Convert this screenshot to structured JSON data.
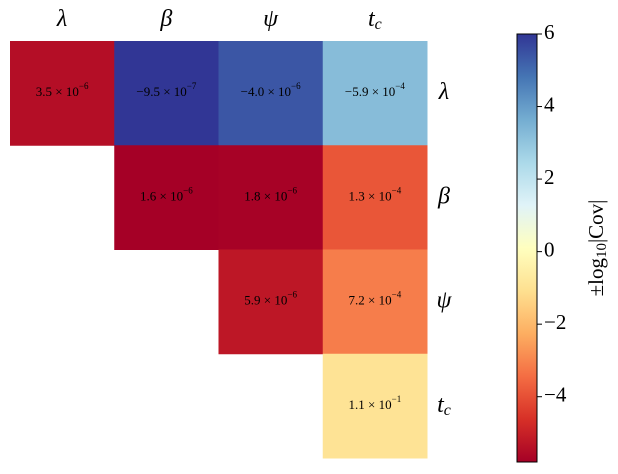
{
  "chart_data": {
    "type": "heatmap",
    "categories": [
      {
        "symbol": "λ"
      },
      {
        "symbol": "β"
      },
      {
        "symbol": "ψ"
      },
      {
        "symbol": "t",
        "subscript": "c"
      }
    ],
    "values": [
      [
        3.5e-06,
        -9.5e-07,
        -4e-06,
        -0.00059
      ],
      [
        null,
        1.6e-06,
        1.8e-06,
        0.00013
      ],
      [
        null,
        null,
        5.9e-06,
        0.00072
      ],
      [
        null,
        null,
        null,
        0.11
      ]
    ],
    "value_labels": [
      [
        {
          "base": "3.5 × 10",
          "exponent": "−6"
        },
        {
          "base": "−9.5 × 10",
          "exponent": "−7"
        },
        {
          "base": "−4.0 × 10",
          "exponent": "−6"
        },
        {
          "base": "−5.9 × 10",
          "exponent": "−4"
        }
      ],
      [
        null,
        {
          "base": "1.6 × 10",
          "exponent": "−6"
        },
        {
          "base": "1.8 × 10",
          "exponent": "−6"
        },
        {
          "base": "1.3 × 10",
          "exponent": "−4"
        }
      ],
      [
        null,
        null,
        {
          "base": "5.9 × 10",
          "exponent": "−6"
        },
        {
          "base": "7.2 × 10",
          "exponent": "−4"
        }
      ],
      [
        null,
        null,
        null,
        {
          "base": "1.1 × 10",
          "exponent": "−1"
        }
      ]
    ],
    "colormap": "RdYlBu",
    "clim": [
      -5.8,
      6.0
    ],
    "cticks": [
      {
        "value": -4,
        "label": "−4"
      },
      {
        "value": -2,
        "label": "−2"
      },
      0,
      2,
      4,
      6
    ],
    "colorbar_label": {
      "prefix": "±log",
      "subscript": "10",
      "suffix": "|Cov|"
    }
  }
}
